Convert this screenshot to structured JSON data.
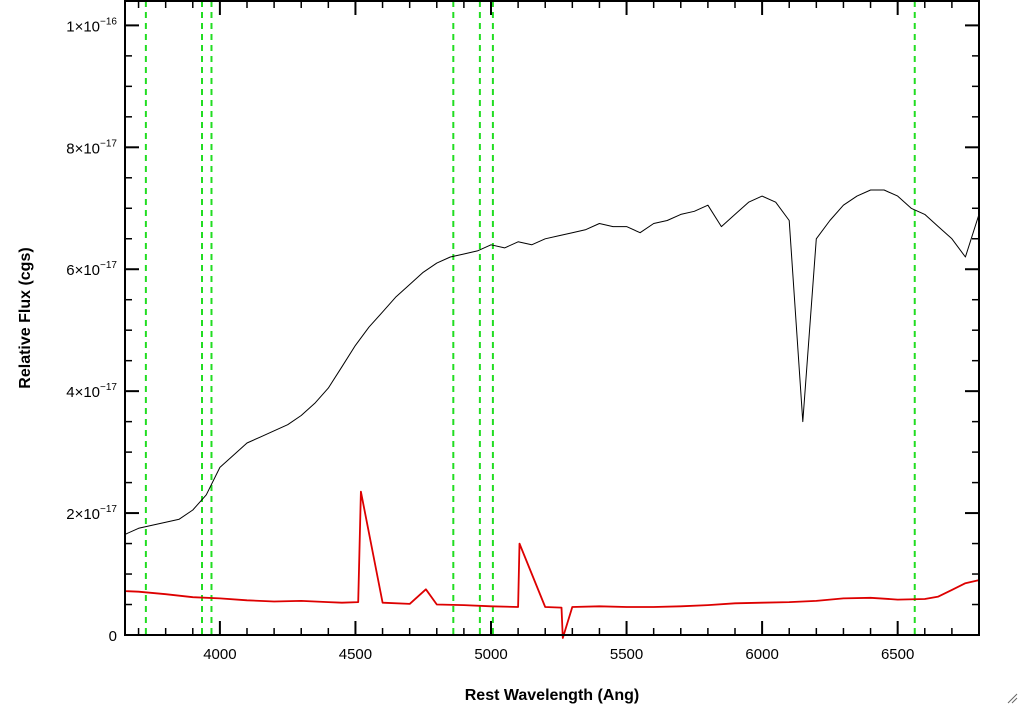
{
  "chart_data": {
    "type": "line",
    "title": "",
    "xlabel": "Rest Wavelength (Ang)",
    "ylabel": "Relative Flux (cgs)",
    "xlim": [
      3650,
      6800
    ],
    "ylim": [
      0,
      1.04e-16
    ],
    "x_ticks": [
      4000,
      4500,
      5000,
      5500,
      6000,
      6500
    ],
    "x_tick_labels": [
      "4000",
      "4500",
      "5000",
      "5500",
      "6000",
      "6500"
    ],
    "y_ticks": [
      0,
      2e-17,
      4e-17,
      6e-17,
      8e-17,
      1e-16
    ],
    "y_tick_labels": [
      {
        "mantissa": "0",
        "exponent": ""
      },
      {
        "mantissa": "2×10",
        "exponent": "−17"
      },
      {
        "mantissa": "4×10",
        "exponent": "−17"
      },
      {
        "mantissa": "6×10",
        "exponent": "−17"
      },
      {
        "mantissa": "8×10",
        "exponent": "−17"
      },
      {
        "mantissa": "1×10",
        "exponent": "−16"
      }
    ],
    "grid": false,
    "legend": "none",
    "vertical_lines": [
      3727,
      3934,
      3969,
      4861,
      4959,
      5007,
      6563
    ],
    "series": [
      {
        "color": "#000000",
        "x": [
          3650,
          3700,
          3750,
          3800,
          3850,
          3900,
          3950,
          4000,
          4050,
          4100,
          4150,
          4200,
          4250,
          4300,
          4350,
          4400,
          4450,
          4500,
          4550,
          4600,
          4650,
          4700,
          4750,
          4800,
          4850,
          4900,
          4950,
          5000,
          5050,
          5100,
          5150,
          5200,
          5250,
          5300,
          5350,
          5400,
          5450,
          5500,
          5550,
          5600,
          5650,
          5700,
          5750,
          5800,
          5850,
          5900,
          5950,
          6000,
          6050,
          6100,
          6150,
          6200,
          6250,
          6300,
          6350,
          6400,
          6450,
          6500,
          6550,
          6600,
          6650,
          6700,
          6750,
          6800
        ],
        "y": [
          1.65e-17,
          1.75e-17,
          1.8e-17,
          1.85e-17,
          1.9e-17,
          2.05e-17,
          2.3e-17,
          2.75e-17,
          2.95e-17,
          3.15e-17,
          3.25e-17,
          3.35e-17,
          3.45e-17,
          3.6e-17,
          3.8e-17,
          4.05e-17,
          4.4e-17,
          4.75e-17,
          5.05e-17,
          5.3e-17,
          5.55e-17,
          5.75e-17,
          5.95e-17,
          6.1e-17,
          6.2e-17,
          6.25e-17,
          6.3e-17,
          6.4e-17,
          6.35e-17,
          6.45e-17,
          6.4e-17,
          6.5e-17,
          6.55e-17,
          6.6e-17,
          6.65e-17,
          6.75e-17,
          6.7e-17,
          6.7e-17,
          6.6e-17,
          6.75e-17,
          6.8e-17,
          6.9e-17,
          6.95e-17,
          7.05e-17,
          6.7e-17,
          6.9e-17,
          7.1e-17,
          7.2e-17,
          7.1e-17,
          6.8e-17,
          3.5e-17,
          6.5e-17,
          6.8e-17,
          7.05e-17,
          7.2e-17,
          7.3e-17,
          7.3e-17,
          7.2e-17,
          7e-17,
          6.9e-17,
          6.7e-17,
          6.5e-17,
          6.2e-17,
          6.9e-17
        ]
      },
      {
        "color": "#dd0000",
        "x": [
          3650,
          3700,
          3800,
          3900,
          4000,
          4100,
          4200,
          4300,
          4400,
          4450,
          4510,
          4520,
          4600,
          4700,
          4760,
          4800,
          4900,
          5000,
          5100,
          5105,
          5200,
          5260,
          5265,
          5300,
          5400,
          5500,
          5600,
          5700,
          5800,
          5900,
          6000,
          6100,
          6200,
          6300,
          6400,
          6500,
          6600,
          6650,
          6700,
          6750,
          6800
        ],
        "y": [
          7.2e-18,
          7.1e-18,
          6.7e-18,
          6.2e-18,
          6e-18,
          5.7e-18,
          5.5e-18,
          5.6e-18,
          5.4e-18,
          5.3e-18,
          5.4e-18,
          2.35e-17,
          5.3e-18,
          5.1e-18,
          7.5e-18,
          5e-18,
          4.9e-18,
          4.7e-18,
          4.6e-18,
          1.5e-17,
          4.6e-18,
          4.5e-18,
          -5e-19,
          4.6e-18,
          4.7e-18,
          4.6e-18,
          4.6e-18,
          4.7e-18,
          4.9e-18,
          5.2e-18,
          5.3e-18,
          5.4e-18,
          5.6e-18,
          6e-18,
          6.1e-18,
          5.8e-18,
          5.9e-18,
          6.3e-18,
          7.4e-18,
          8.5e-18,
          9e-18
        ]
      }
    ]
  }
}
